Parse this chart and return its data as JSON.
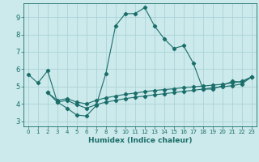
{
  "xlabel": "Humidex (Indice chaleur)",
  "bg_color": "#cce9eb",
  "grid_color": "#aad4d8",
  "line_color": "#1a6e6a",
  "xlim": [
    -0.5,
    23.5
  ],
  "ylim": [
    2.7,
    9.8
  ],
  "xticks": [
    0,
    1,
    2,
    3,
    4,
    5,
    6,
    7,
    8,
    9,
    10,
    11,
    12,
    13,
    14,
    15,
    16,
    17,
    18,
    19,
    20,
    21,
    22,
    23
  ],
  "yticks": [
    3,
    4,
    5,
    6,
    7,
    8,
    9
  ],
  "line1_x": [
    0,
    1,
    2,
    3,
    4,
    5,
    6,
    7,
    8,
    9,
    10,
    11,
    12,
    13,
    14,
    15,
    16,
    17,
    18,
    19,
    20,
    21,
    22,
    23
  ],
  "line1_y": [
    5.7,
    5.2,
    5.9,
    4.1,
    3.75,
    3.35,
    3.3,
    3.9,
    5.75,
    8.5,
    9.2,
    9.2,
    9.55,
    8.5,
    7.75,
    7.2,
    7.35,
    6.35,
    4.85,
    4.85,
    5.05,
    5.3,
    5.25,
    5.55
  ],
  "line2_x": [
    2,
    3,
    4,
    5,
    6,
    7,
    8,
    9,
    10,
    11,
    12,
    13,
    14,
    15,
    16,
    17,
    18,
    19,
    20,
    21,
    22,
    23
  ],
  "line2_y": [
    4.65,
    4.2,
    4.3,
    4.1,
    4.0,
    4.2,
    4.35,
    4.45,
    4.55,
    4.62,
    4.7,
    4.77,
    4.82,
    4.87,
    4.93,
    4.98,
    5.03,
    5.08,
    5.13,
    5.2,
    5.3,
    5.55
  ],
  "line3_x": [
    2,
    3,
    4,
    5,
    6,
    7,
    8,
    9,
    10,
    11,
    12,
    13,
    14,
    15,
    16,
    17,
    18,
    19,
    20,
    21,
    22,
    23
  ],
  "line3_y": [
    4.65,
    4.1,
    4.2,
    3.95,
    3.75,
    3.95,
    4.1,
    4.2,
    4.3,
    4.38,
    4.45,
    4.52,
    4.58,
    4.65,
    4.72,
    4.78,
    4.85,
    4.92,
    4.98,
    5.05,
    5.15,
    5.55
  ]
}
